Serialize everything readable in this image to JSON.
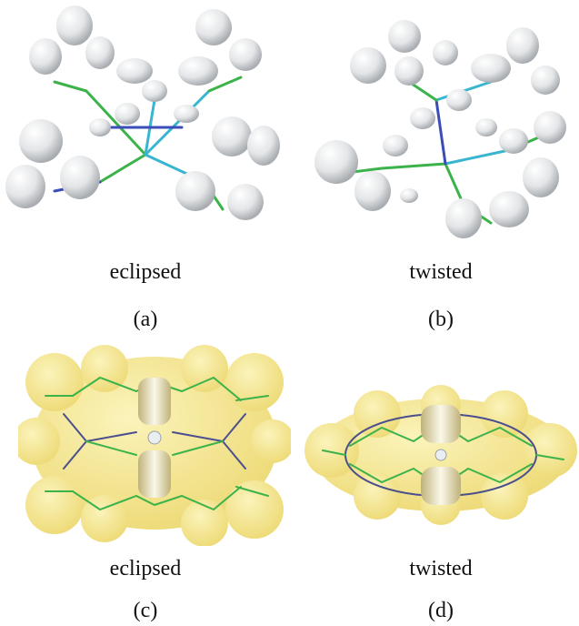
{
  "figure": {
    "panels": [
      {
        "caption": "eclipsed",
        "label": "(a)",
        "render": "gray-lobes"
      },
      {
        "caption": "twisted",
        "label": "(b)",
        "render": "gray-lobes"
      },
      {
        "caption": "eclipsed",
        "label": "(c)",
        "render": "yellow-isosurface"
      },
      {
        "caption": "twisted",
        "label": "(d)",
        "render": "yellow-isosurface"
      }
    ],
    "colors": {
      "lobe": "#e6e8ea",
      "bond_green": "#3cb34a",
      "bond_cyan": "#39b6cf",
      "bond_blue": "#3b4db8",
      "isosurface": "#f2e27a"
    }
  }
}
